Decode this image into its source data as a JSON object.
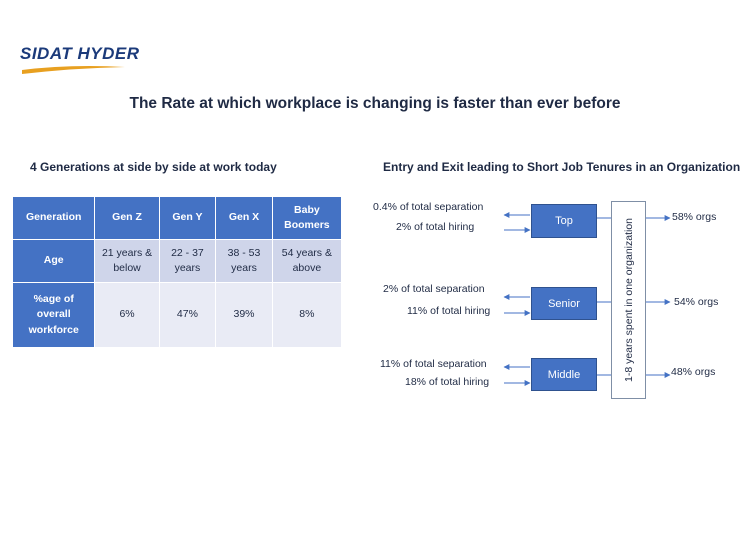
{
  "logo": {
    "text": "SIDAT HYDER",
    "colors": {
      "text": "#1b3a7a",
      "swoosh": "#e8a020"
    }
  },
  "title": "The Rate at which workplace is changing is faster than ever before",
  "left_heading": "4 Generations at side by side at work today",
  "right_heading": "Entry and Exit leading to Short Job Tenures in an Organization",
  "table": {
    "rows": [
      [
        "Generation",
        "Gen Z",
        "Gen Y",
        "Gen X",
        "Baby Boomers"
      ],
      [
        "Age",
        "21 years & below",
        "22 - 37 years",
        "38 - 53 years",
        "54 years & above"
      ],
      [
        "%age of overall workforce",
        "6%",
        "47%",
        "39%",
        "8%"
      ]
    ],
    "colors": {
      "header": "#4472c4",
      "row1": "#cfd5ea",
      "row2": "#e9ebf5"
    }
  },
  "flow": {
    "levels": [
      {
        "name": "Top",
        "separation": "0.4% of  total separation",
        "hiring": "2% of  total hiring",
        "orgs": "58% orgs"
      },
      {
        "name": "Senior",
        "separation": "2% of  total separation",
        "hiring": "11% of  total hiring",
        "orgs": "54% orgs"
      },
      {
        "name": "Middle",
        "separation": "11% of  total separation",
        "hiring": "18% of  total hiring",
        "orgs": "48% orgs"
      }
    ],
    "vertical_label": "1-8 years spent in one organization",
    "colors": {
      "box": "#4472c4",
      "arrow": "#4472c4"
    }
  }
}
